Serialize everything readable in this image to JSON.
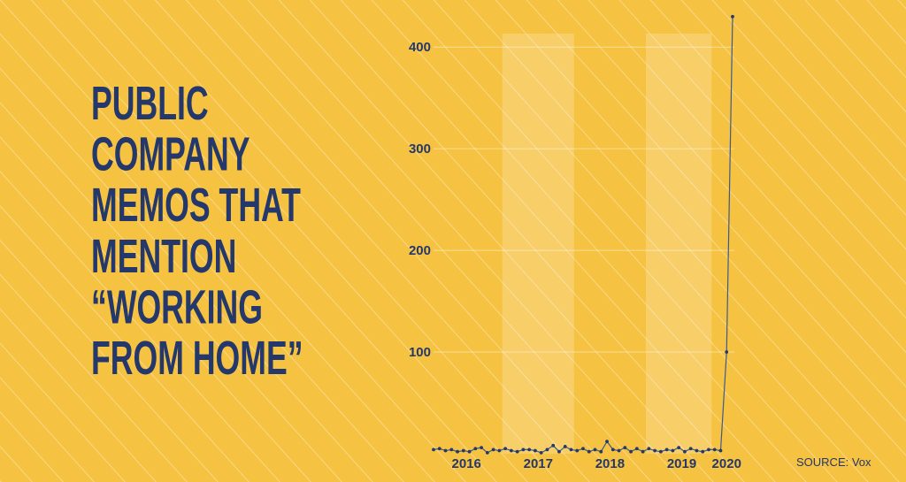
{
  "chart_data": {
    "type": "line",
    "title": [
      "PUBLIC",
      "COMPANY",
      "MEMOS THAT",
      "MENTION",
      "“WORKING",
      "FROM HOME”"
    ],
    "source": "SOURCE: Vox",
    "values": [
      4,
      5,
      3,
      4,
      2,
      3,
      2,
      5,
      6,
      1,
      4,
      3,
      5,
      3,
      2,
      4,
      4,
      3,
      1,
      4,
      8,
      2,
      7,
      4,
      3,
      5,
      2,
      4,
      2,
      12,
      4,
      3,
      6,
      2,
      5,
      2,
      5,
      3,
      2,
      4,
      3,
      6,
      2,
      5,
      3,
      2,
      4,
      4,
      3,
      100,
      430
    ],
    "color": "#3d5a8f",
    "xlim": [
      0,
      50
    ],
    "xticks": [
      {
        "value": 5.5,
        "label": "2016"
      },
      {
        "value": 17.5,
        "label": "2017"
      },
      {
        "value": 29.5,
        "label": "2018"
      },
      {
        "value": 41.5,
        "label": "2019"
      },
      {
        "value": 49,
        "label": "2020"
      }
    ],
    "shaded_ranges": [
      [
        11.5,
        23.5
      ],
      [
        35.5,
        46.5
      ]
    ],
    "ylim": [
      0,
      435
    ],
    "yticks": [
      100,
      200,
      300,
      400
    ],
    "grid": true
  }
}
